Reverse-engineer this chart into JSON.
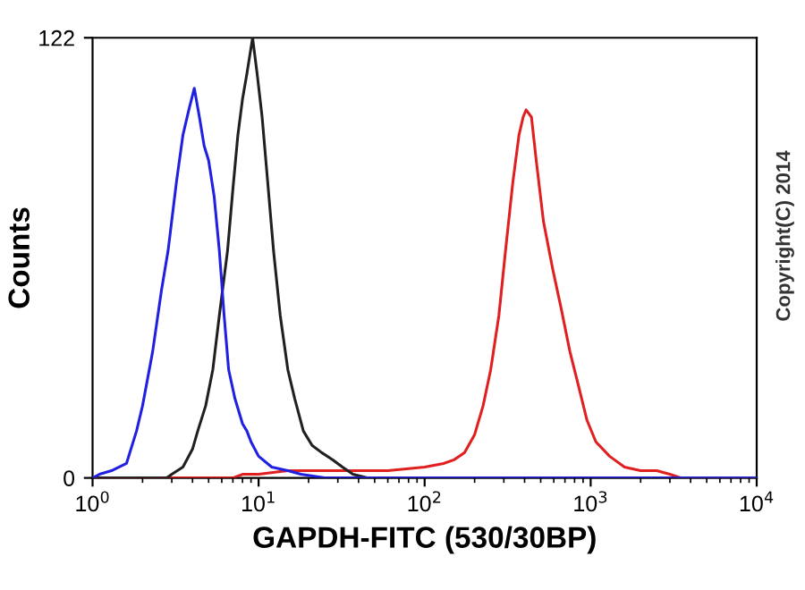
{
  "chart_data": {
    "type": "line",
    "xlabel": "GAPDH-FITC (530/30BP)",
    "ylabel": "Counts",
    "log": "x",
    "xlim": [
      1,
      10000
    ],
    "xticks": [
      {
        "value": 1,
        "label": "10$^{0}$"
      },
      {
        "value": 10,
        "label": "10$^{1}$"
      },
      {
        "value": 100,
        "label": "10$^{2}$"
      },
      {
        "value": 1000,
        "label": "10$^{3}$"
      },
      {
        "value": 10000,
        "label": "10$^{4}$"
      }
    ],
    "ylim": [
      0,
      122
    ],
    "yticks": [
      0,
      122
    ],
    "grid": false,
    "marker": "none",
    "line_style": "solid",
    "annotations": [
      "Copyright(C) 2014"
    ],
    "series": [
      {
        "color": "#2020e0",
        "x": [
          1.0,
          1.1,
          1.3,
          1.6,
          1.84,
          2.0,
          2.3,
          2.6,
          2.85,
          3.2,
          3.5,
          3.8,
          4.1,
          4.4,
          4.7,
          5.0,
          5.4,
          5.8,
          6.2,
          6.6,
          7.2,
          8.0,
          8.5,
          9.0,
          10,
          12,
          15,
          18,
          25,
          100,
          1000,
          10000
        ],
        "values": [
          0,
          1,
          2,
          4,
          13,
          20,
          35,
          52,
          63,
          82,
          95,
          102,
          108,
          100,
          92,
          88,
          78,
          63,
          45,
          30,
          22,
          15,
          13,
          10,
          6,
          3,
          2,
          1,
          0,
          0,
          0,
          0
        ]
      },
      {
        "color": "#202020",
        "x": [
          1.0,
          2.8,
          3.0,
          3.5,
          4.0,
          4.3,
          4.8,
          5.3,
          5.8,
          6.5,
          7.0,
          7.5,
          8.0,
          8.5,
          9.2,
          9.8,
          10.5,
          11.2,
          12.3,
          13.5,
          15,
          16.5,
          18.6,
          21,
          24,
          28,
          32,
          37,
          45,
          10000
        ],
        "values": [
          0,
          0,
          1,
          3,
          8,
          13,
          20,
          30,
          45,
          63,
          80,
          95,
          105,
          112,
          122,
          112,
          100,
          85,
          63,
          45,
          30,
          22,
          13,
          9,
          7,
          5,
          3,
          1,
          0,
          0
        ]
      },
      {
        "color": "#e02020",
        "x": [
          1,
          7,
          8,
          10,
          15,
          30,
          60,
          100,
          130,
          150,
          174,
          200,
          225,
          250,
          280,
          307,
          340,
          370,
          392,
          408,
          440,
          470,
          520,
          590,
          664,
          750,
          850,
          950,
          1075,
          1300,
          1600,
          2000,
          2500,
          3000,
          3500,
          10000
        ],
        "values": [
          0,
          0,
          1,
          1,
          2,
          2,
          2,
          3,
          4,
          5,
          7,
          12,
          20,
          30,
          45,
          63,
          82,
          95,
          100,
          102,
          100,
          88,
          71,
          58,
          47,
          35,
          25,
          16,
          10,
          6,
          3,
          2,
          2,
          1,
          0,
          0
        ]
      }
    ]
  }
}
